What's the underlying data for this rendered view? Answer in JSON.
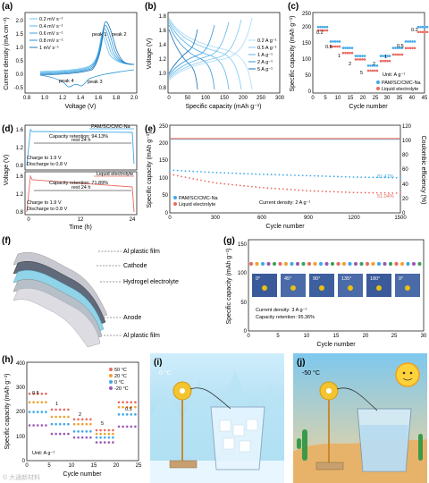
{
  "panels": {
    "a": {
      "label": "(a)",
      "xlabel": "Voltage (V)",
      "ylabel": "Current density (mA cm⁻²)",
      "xticks": [
        "0.8",
        "1.0",
        "1.2",
        "1.4",
        "1.6",
        "1.8",
        "2.0"
      ],
      "yticks": [
        "-0.5",
        "0.0",
        "0.5",
        "1.0",
        "1.5",
        "2.0"
      ],
      "legend": [
        "0.2 mV s⁻¹",
        "0.4 mV s⁻¹",
        "0.6 mV s⁻¹",
        "0.8 mV s⁻¹",
        "1 mV s⁻¹"
      ],
      "annotations": [
        "peak 1",
        "peak 2",
        "peak 3",
        "peak 4"
      ]
    },
    "b": {
      "label": "(b)",
      "xlabel": "Specific capacity (mAh g⁻¹)",
      "ylabel": "Voltage (V)",
      "xticks": [
        "0",
        "50",
        "100",
        "150",
        "200",
        "250",
        "300"
      ],
      "yticks": [
        "0.8",
        "1.0",
        "1.2",
        "1.4",
        "1.6",
        "1.8"
      ],
      "legend": [
        "0.2 A g⁻¹",
        "0.5 A g⁻¹",
        "1 A g⁻¹",
        "2 A g⁻¹",
        "5 A g⁻¹"
      ]
    },
    "c": {
      "label": "(c)",
      "xlabel": "Cycle number",
      "ylabel": "Specific capacity (mAh g⁻¹)",
      "xticks": [
        "0",
        "5",
        "10",
        "15",
        "20",
        "25",
        "30",
        "35",
        "40",
        "45"
      ],
      "yticks": [
        "0",
        "50",
        "100",
        "150",
        "200",
        "250"
      ],
      "rates": [
        "0.2",
        "0.5",
        "1",
        "2",
        "5",
        "2",
        "1",
        "0.5",
        "0.2"
      ],
      "unit": "Unit: A g⁻¹",
      "legend": [
        "PAM/SC/CMC-Na",
        "Liquid electrolyte"
      ]
    },
    "d": {
      "label": "(d)",
      "xlabel": "Time (h)",
      "ylabel": "Voltage (V)",
      "xticks": [
        "0",
        "12",
        "24"
      ],
      "yticks_top": [
        "1.6",
        "1.2",
        "0.8"
      ],
      "yticks_bottom": [
        "1.6",
        "1.2",
        "0.8"
      ],
      "legend_top": "PAM/SC/CMC-Na",
      "legend_bottom": "Liquid electrolyte",
      "retention_top": "Capacity retention: 94.13%",
      "retention_bottom": "Capacity retention: 71.89%",
      "rest": "rest 24 h",
      "charge": "Charge to 1.9 V",
      "discharge": "Discharge to 0.8 V"
    },
    "e": {
      "label": "(e)",
      "xlabel": "Cycle number",
      "ylabel": "Specific capacity (mAh g⁻¹)",
      "ylabel2": "Coulombic efficiency (%)",
      "xticks": [
        "0",
        "300",
        "600",
        "900",
        "1200",
        "1500"
      ],
      "yticks": [
        "0",
        "50",
        "100",
        "150",
        "200",
        "250"
      ],
      "yticks2": [
        "0",
        "20",
        "40",
        "60",
        "80",
        "100",
        "120"
      ],
      "legend": [
        "PAM/SC/CMC-Na",
        "Liquid electrolyte"
      ],
      "current": "Current density: 2 A g⁻¹",
      "ret1": "81.47%",
      "ret2": "51.04%"
    },
    "f": {
      "label": "(f)",
      "layers": [
        "Al plastic film",
        "Cathode",
        "Hydrogel electrolyte",
        "Anode",
        "Al plastic film"
      ]
    },
    "g": {
      "label": "(g)",
      "xlabel": "Cycle number",
      "ylabel": "Specific capacity (mAh g⁻¹)",
      "xticks": [
        "0",
        "5",
        "10",
        "15",
        "20",
        "25",
        "30"
      ],
      "yticks": [
        "0",
        "50",
        "100",
        "150"
      ],
      "angles": [
        "0°",
        "45°",
        "90°",
        "135°",
        "180°",
        "0°"
      ],
      "current": "Current density: 3 A g⁻¹",
      "retention": "Capacity retention: 95.36%"
    },
    "h": {
      "label": "(h)",
      "xlabel": "Cycle number",
      "ylabel": "Specific capacity (mAh g⁻¹)",
      "xticks": [
        "0",
        "5",
        "10",
        "15",
        "20",
        "25"
      ],
      "yticks": [
        "0",
        "100",
        "200",
        "300",
        "400"
      ],
      "legend": [
        "50 °C",
        "20 °C",
        "0 °C",
        "-20 °C"
      ],
      "rates": [
        "0.5",
        "1",
        "2",
        "5",
        "0.5"
      ],
      "unit": "Unit: A g⁻¹"
    },
    "i": {
      "label": "(i)",
      "temp": "0 °C"
    },
    "j": {
      "label": "(j)",
      "temp": "-50 °C"
    }
  },
  "colors": {
    "line": "#2a8ccf",
    "blue": "#3fa9e8",
    "red": "#e86a60",
    "purple": "#9b59b6"
  },
  "chart_data": [
    {
      "type": "line",
      "title": "",
      "xlabel": "Cycle number",
      "ylabel": "Specific capacity (mAh g⁻¹)",
      "x": [
        1,
        300,
        600,
        900,
        1200,
        1500
      ],
      "series": [
        {
          "name": "PAM/SC/CMC-Na",
          "values": [
            122,
            115,
            110,
            106,
            102,
            100
          ]
        },
        {
          "name": "Liquid electrolyte",
          "values": [
            110,
            85,
            72,
            63,
            58,
            56
          ]
        }
      ],
      "ylim": [
        0,
        250
      ],
      "xlim": [
        0,
        1500
      ]
    }
  ],
  "watermark": "© 大通新材料"
}
